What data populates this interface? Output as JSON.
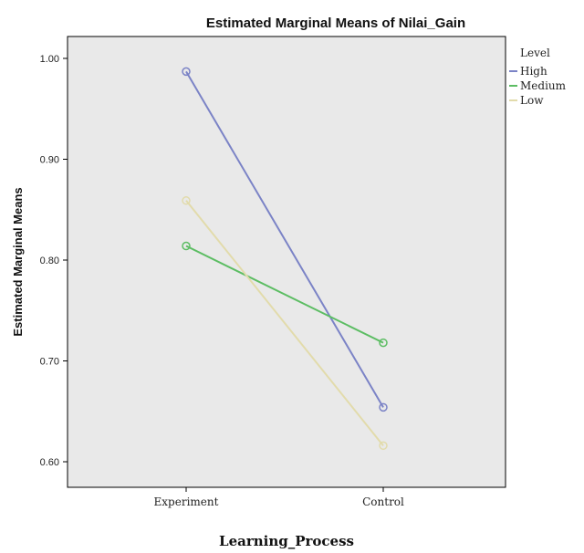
{
  "chart_data": {
    "type": "line",
    "title": "Estimated Marginal Means of Nilai_Gain",
    "xlabel": "Learning_Process",
    "ylabel": "Estimated Marginal Means",
    "categories": [
      "Experiment",
      "Control"
    ],
    "ylim": [
      0.6,
      1.0
    ],
    "yticks": [
      0.6,
      0.7,
      0.8,
      0.9,
      1.0
    ],
    "ytick_labels": [
      "0.60",
      "0.70",
      "0.80",
      "0.90",
      "1.00"
    ],
    "grid": false,
    "legend": {
      "title": "Level",
      "placement": "top-right"
    },
    "series": [
      {
        "name": "High",
        "color": "#7b83c6",
        "values": [
          0.987,
          0.654
        ]
      },
      {
        "name": "Medium",
        "color": "#5cbd63",
        "values": [
          0.814,
          0.718
        ]
      },
      {
        "name": "Low",
        "color": "#e2dbab",
        "values": [
          0.859,
          0.616
        ]
      }
    ]
  },
  "colors": {
    "plot_background": "#e9e9e9",
    "axis": "#000000"
  }
}
